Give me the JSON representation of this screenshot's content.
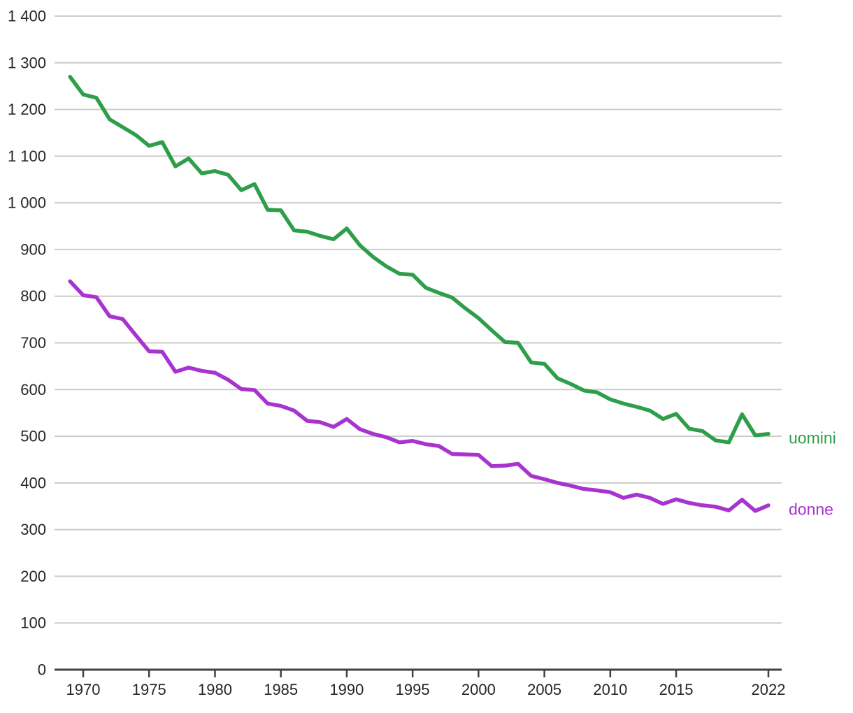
{
  "chart_data": {
    "type": "line",
    "title": "",
    "xlabel": "",
    "ylabel": "",
    "grid": true,
    "legend_position": "inline-right-of-lines",
    "xlim": [
      1969,
      2022
    ],
    "ylim": [
      0,
      1400
    ],
    "x": [
      1969,
      1970,
      1971,
      1972,
      1973,
      1974,
      1975,
      1976,
      1977,
      1978,
      1979,
      1980,
      1981,
      1982,
      1983,
      1984,
      1985,
      1986,
      1987,
      1988,
      1989,
      1990,
      1991,
      1992,
      1993,
      1994,
      1995,
      1996,
      1997,
      1998,
      1999,
      2000,
      2001,
      2002,
      2003,
      2004,
      2005,
      2006,
      2007,
      2008,
      2009,
      2010,
      2011,
      2012,
      2013,
      2014,
      2015,
      2016,
      2017,
      2018,
      2019,
      2020,
      2021,
      2022
    ],
    "series": [
      {
        "name": "uomini",
        "color": "#2f9e4a",
        "values": [
          1270,
          1232,
          1225,
          1179,
          1162,
          1145,
          1122,
          1130,
          1078,
          1095,
          1063,
          1068,
          1060,
          1027,
          1040,
          985,
          984,
          941,
          938,
          929,
          922,
          945,
          909,
          884,
          864,
          848,
          846,
          818,
          807,
          797,
          774,
          753,
          727,
          702,
          700,
          658,
          655,
          624,
          612,
          598,
          594,
          579,
          570,
          563,
          555,
          537,
          548,
          516,
          511,
          491,
          487,
          547,
          502,
          505
        ]
      },
      {
        "name": "donne",
        "color": "#a833cf",
        "values": [
          832,
          802,
          798,
          757,
          751,
          716,
          682,
          681,
          638,
          647,
          640,
          636,
          621,
          601,
          599,
          570,
          565,
          555,
          533,
          530,
          520,
          537,
          515,
          505,
          498,
          487,
          490,
          483,
          479,
          462,
          461,
          460,
          436,
          437,
          441,
          415,
          408,
          400,
          394,
          387,
          384,
          380,
          368,
          375,
          368,
          355,
          365,
          357,
          352,
          349,
          341,
          364,
          340,
          352
        ]
      }
    ],
    "x_ticks": [
      1970,
      1975,
      1980,
      1985,
      1990,
      1995,
      2000,
      2005,
      2010,
      2015,
      2022
    ],
    "y_ticks": [
      {
        "value": 0,
        "label": "0"
      },
      {
        "value": 100,
        "label": "100"
      },
      {
        "value": 200,
        "label": "200"
      },
      {
        "value": 300,
        "label": "300"
      },
      {
        "value": 400,
        "label": "400"
      },
      {
        "value": 500,
        "label": "500"
      },
      {
        "value": 600,
        "label": "600"
      },
      {
        "value": 700,
        "label": "700"
      },
      {
        "value": 800,
        "label": "800"
      },
      {
        "value": 900,
        "label": "900"
      },
      {
        "value": 1000,
        "label": "1 000"
      },
      {
        "value": 1100,
        "label": "1 100"
      },
      {
        "value": 1200,
        "label": "1 200"
      },
      {
        "value": 1300,
        "label": "1 300"
      },
      {
        "value": 1400,
        "label": "1 400"
      }
    ],
    "colors": {
      "grid": "#cccccc",
      "axis": "#404040",
      "tick_text": "#262626"
    }
  }
}
